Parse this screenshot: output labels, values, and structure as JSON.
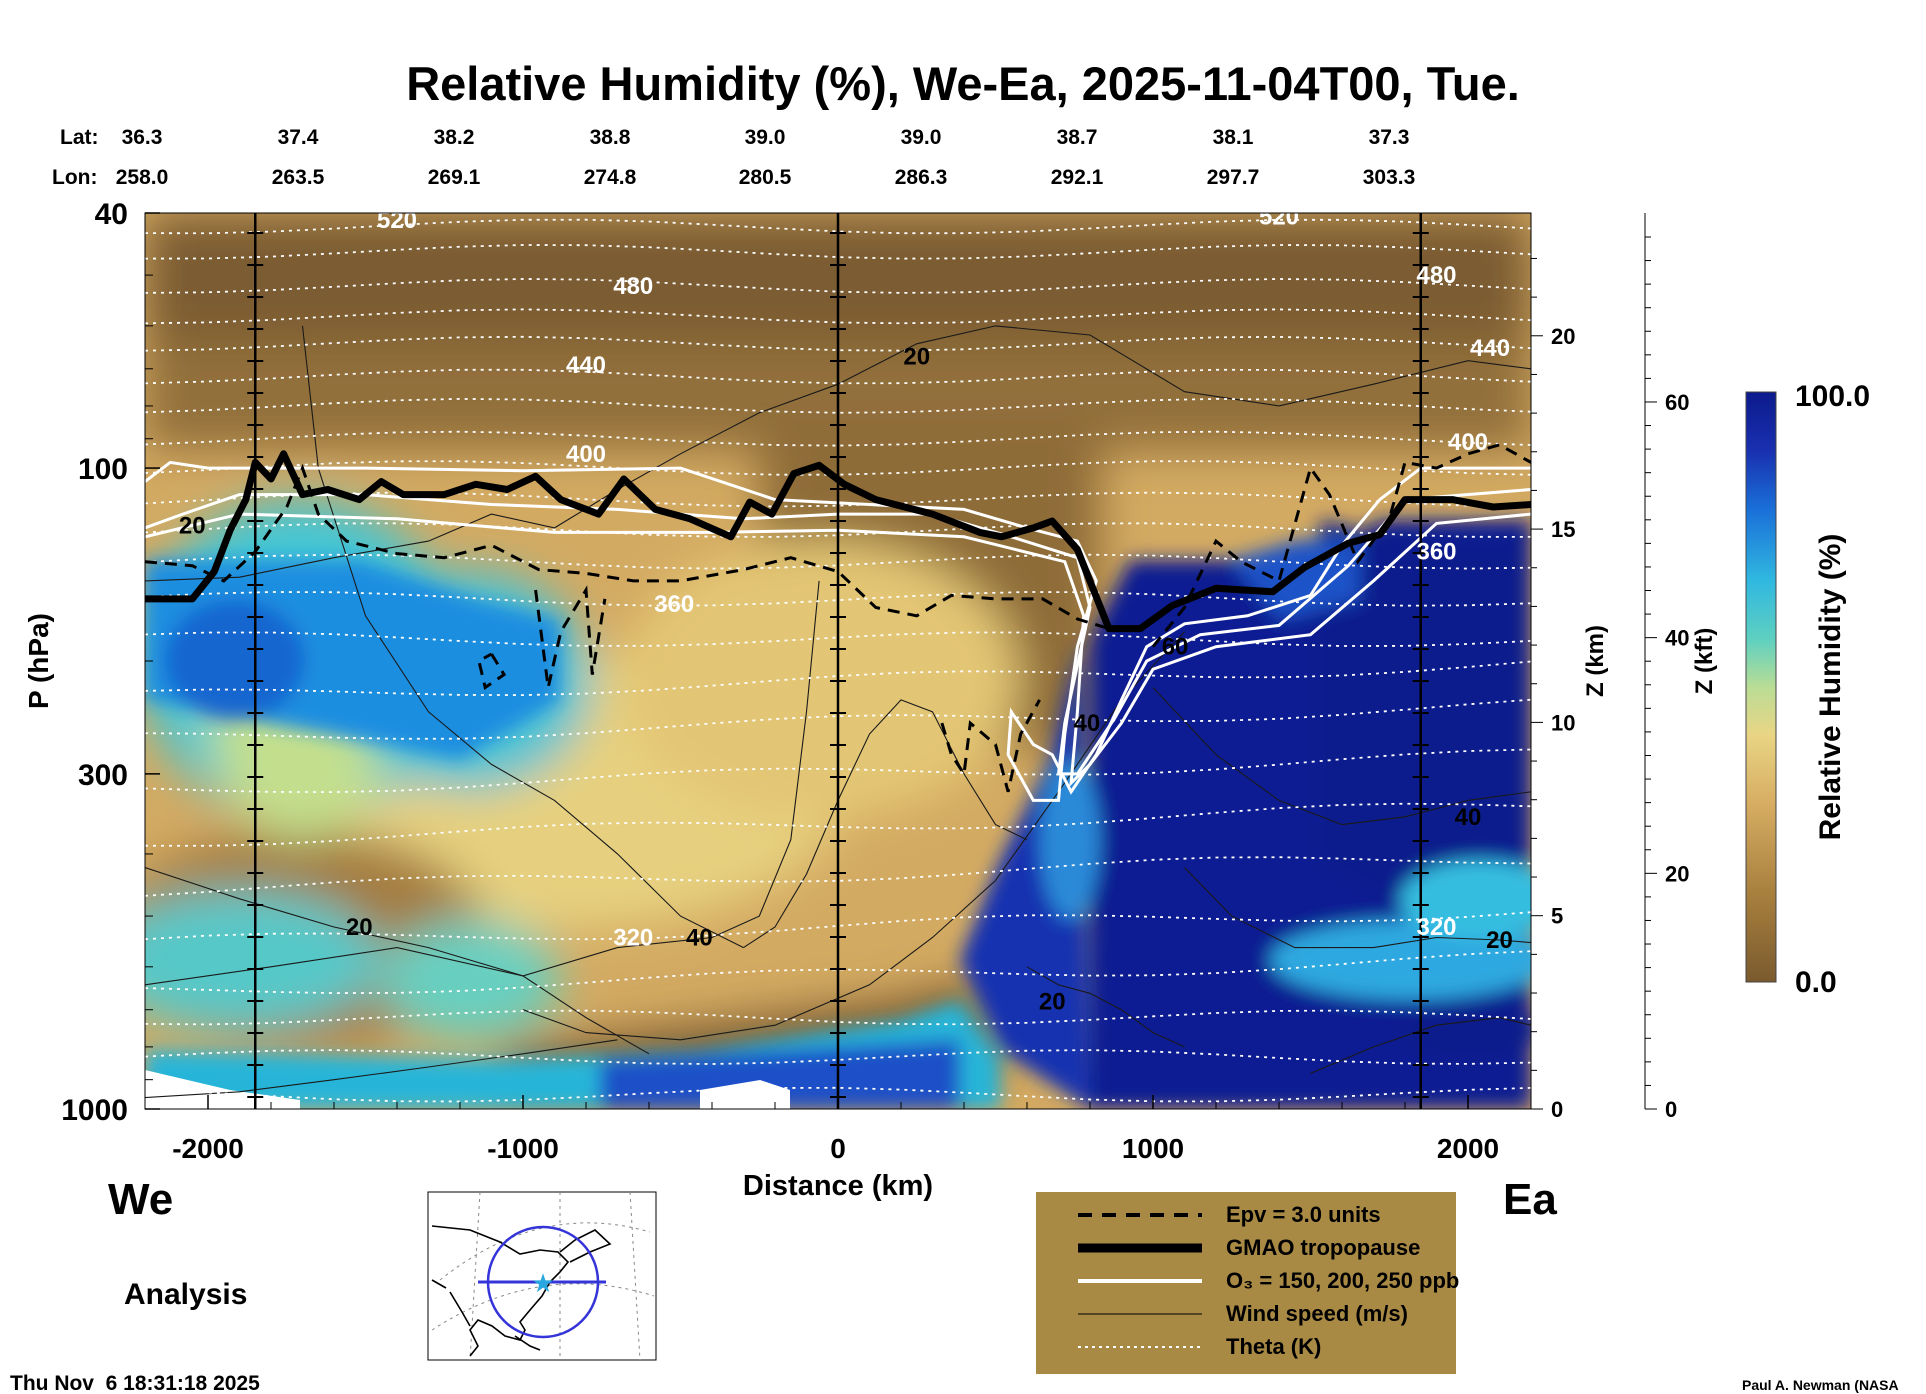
{
  "title": "Relative Humidity (%), We-Ea, 2025-11-04T00, Tue.",
  "lat_label": "Lat:",
  "lon_label": "Lon:",
  "lats": [
    "36.3",
    "37.4",
    "38.2",
    "38.8",
    "39.0",
    "39.0",
    "38.7",
    "38.1",
    "37.3"
  ],
  "lons": [
    "258.0",
    "263.5",
    "269.1",
    "274.8",
    "280.5",
    "286.3",
    "292.1",
    "297.7",
    "303.3"
  ],
  "west_label": "We",
  "east_label": "Ea",
  "analysis_label": "Analysis",
  "timestamp": "Thu Nov  6 18:31:18 2025",
  "credit": "Paul A. Newman (NASA",
  "colors": {
    "dry": "#7a5a2e",
    "tan": "#d6ac62",
    "yellow": "#e9d585",
    "cyan": "#34c3d8",
    "blue": "#1a56c8",
    "navy": "#0c1a8c",
    "legend_bg": "#a98a45",
    "contour": "#1a1a1a",
    "theta": "#ffffff"
  },
  "legend": {
    "items": [
      {
        "label": "Epv = 3.0 units",
        "style": "dashed"
      },
      {
        "label": "GMAO tropopause",
        "style": "thick"
      },
      {
        "label": "O₃ = 150, 200, 250 ppb",
        "style": "white"
      },
      {
        "label": "Wind speed (m/s)",
        "style": "thin"
      },
      {
        "label": "Theta (K)",
        "style": "dotted"
      }
    ]
  },
  "chart_data": {
    "type": "heatmap",
    "xlabel": "Distance (km)",
    "ylabel": "P (hPa)",
    "xlim": [
      -2200,
      2200
    ],
    "ylim": [
      1000,
      40
    ],
    "y_scale": "log",
    "x_ticks": [
      -2000,
      -1000,
      0,
      1000,
      2000
    ],
    "y_ticks": [
      40,
      100,
      300,
      1000
    ],
    "z_km_label": "Z (km)",
    "z_km_ticks": [
      0,
      5,
      10,
      15,
      20
    ],
    "z_kft_label": "Z (kft)",
    "z_kft_ticks": [
      0,
      20,
      40,
      60
    ],
    "colorbar": {
      "label": "Relative Humidity (%)",
      "min_label": "0.0",
      "max_label": "100.0",
      "min": 0,
      "max": 100
    },
    "vertical_markers_km": [
      -1850,
      0,
      1850
    ],
    "theta_labels": [
      {
        "text": "520",
        "x": -1400,
        "p": 41
      },
      {
        "text": "520",
        "x": 1400,
        "p": 40.5
      },
      {
        "text": "480",
        "x": -650,
        "p": 52
      },
      {
        "text": "480",
        "x": 1900,
        "p": 50
      },
      {
        "text": "440",
        "x": -800,
        "p": 69
      },
      {
        "text": "440",
        "x": 2070,
        "p": 65
      },
      {
        "text": "400",
        "x": -800,
        "p": 95
      },
      {
        "text": "400",
        "x": 2000,
        "p": 91
      },
      {
        "text": "360",
        "x": -520,
        "p": 163
      },
      {
        "text": "360",
        "x": 1900,
        "p": 135
      },
      {
        "text": "320",
        "x": -650,
        "p": 540
      },
      {
        "text": "320",
        "x": 1900,
        "p": 520
      }
    ],
    "wind_labels": [
      {
        "text": "20",
        "x": -2050,
        "p": 123
      },
      {
        "text": "20",
        "x": 250,
        "p": 67
      },
      {
        "text": "60",
        "x": 1070,
        "p": 190
      },
      {
        "text": "40",
        "x": 790,
        "p": 250
      },
      {
        "text": "40",
        "x": 2000,
        "p": 350
      },
      {
        "text": "40",
        "x": -440,
        "p": 540
      },
      {
        "text": "20",
        "x": -1520,
        "p": 520
      },
      {
        "text": "20",
        "x": 680,
        "p": 680
      },
      {
        "text": "20",
        "x": 2100,
        "p": 545
      }
    ],
    "tropopause": [
      {
        "x": -2200,
        "p": 160
      },
      {
        "x": -2050,
        "p": 160
      },
      {
        "x": -1980,
        "p": 145
      },
      {
        "x": -1930,
        "p": 125
      },
      {
        "x": -1880,
        "p": 112
      },
      {
        "x": -1850,
        "p": 98
      },
      {
        "x": -1800,
        "p": 104
      },
      {
        "x": -1760,
        "p": 95
      },
      {
        "x": -1700,
        "p": 110
      },
      {
        "x": -1620,
        "p": 108
      },
      {
        "x": -1520,
        "p": 112
      },
      {
        "x": -1450,
        "p": 105
      },
      {
        "x": -1380,
        "p": 110
      },
      {
        "x": -1250,
        "p": 110
      },
      {
        "x": -1150,
        "p": 106
      },
      {
        "x": -1050,
        "p": 108
      },
      {
        "x": -960,
        "p": 103
      },
      {
        "x": -880,
        "p": 112
      },
      {
        "x": -760,
        "p": 118
      },
      {
        "x": -680,
        "p": 104
      },
      {
        "x": -580,
        "p": 116
      },
      {
        "x": -470,
        "p": 120
      },
      {
        "x": -340,
        "p": 128
      },
      {
        "x": -280,
        "p": 113
      },
      {
        "x": -210,
        "p": 118
      },
      {
        "x": -140,
        "p": 102
      },
      {
        "x": -60,
        "p": 99
      },
      {
        "x": 20,
        "p": 106
      },
      {
        "x": 120,
        "p": 112
      },
      {
        "x": 300,
        "p": 118
      },
      {
        "x": 450,
        "p": 126
      },
      {
        "x": 520,
        "p": 128
      },
      {
        "x": 620,
        "p": 124
      },
      {
        "x": 680,
        "p": 121
      },
      {
        "x": 760,
        "p": 134
      },
      {
        "x": 860,
        "p": 178
      },
      {
        "x": 960,
        "p": 178
      },
      {
        "x": 1060,
        "p": 164
      },
      {
        "x": 1200,
        "p": 154
      },
      {
        "x": 1380,
        "p": 156
      },
      {
        "x": 1480,
        "p": 143
      },
      {
        "x": 1620,
        "p": 131
      },
      {
        "x": 1720,
        "p": 127
      },
      {
        "x": 1800,
        "p": 112
      },
      {
        "x": 1950,
        "p": 112
      },
      {
        "x": 2080,
        "p": 115
      },
      {
        "x": 2200,
        "p": 114
      }
    ],
    "ozone_contours": [
      [
        {
          "x": -2200,
          "p": 105
        },
        {
          "x": -2120,
          "p": 98
        },
        {
          "x": -2000,
          "p": 100
        },
        {
          "x": -1500,
          "p": 100
        },
        {
          "x": -1000,
          "p": 101
        },
        {
          "x": -500,
          "p": 100
        },
        {
          "x": -200,
          "p": 112
        },
        {
          "x": 100,
          "p": 114
        },
        {
          "x": 400,
          "p": 116
        },
        {
          "x": 600,
          "p": 124
        },
        {
          "x": 760,
          "p": 130
        },
        {
          "x": 820,
          "p": 150
        },
        {
          "x": 760,
          "p": 190
        },
        {
          "x": 720,
          "p": 260
        },
        {
          "x": 700,
          "p": 330
        },
        {
          "x": 620,
          "p": 330
        },
        {
          "x": 540,
          "p": 280
        },
        {
          "x": 550,
          "p": 240
        },
        {
          "x": 620,
          "p": 270
        },
        {
          "x": 680,
          "p": 280
        },
        {
          "x": 740,
          "p": 320
        },
        {
          "x": 820,
          "p": 280
        },
        {
          "x": 900,
          "p": 230
        },
        {
          "x": 980,
          "p": 190
        },
        {
          "x": 1100,
          "p": 175
        },
        {
          "x": 1300,
          "p": 170
        },
        {
          "x": 1500,
          "p": 158
        },
        {
          "x": 1600,
          "p": 132
        },
        {
          "x": 1720,
          "p": 112
        },
        {
          "x": 1850,
          "p": 100
        },
        {
          "x": 2200,
          "p": 100
        }
      ],
      [
        {
          "x": -2200,
          "p": 124
        },
        {
          "x": -2080,
          "p": 118
        },
        {
          "x": -1900,
          "p": 110
        },
        {
          "x": -1500,
          "p": 110
        },
        {
          "x": -1100,
          "p": 114
        },
        {
          "x": -700,
          "p": 116
        },
        {
          "x": -300,
          "p": 120
        },
        {
          "x": 0,
          "p": 118
        },
        {
          "x": 300,
          "p": 118
        },
        {
          "x": 550,
          "p": 128
        },
        {
          "x": 760,
          "p": 138
        },
        {
          "x": 800,
          "p": 165
        },
        {
          "x": 720,
          "p": 250
        },
        {
          "x": 700,
          "p": 300
        },
        {
          "x": 760,
          "p": 300
        },
        {
          "x": 880,
          "p": 245
        },
        {
          "x": 980,
          "p": 200
        },
        {
          "x": 1150,
          "p": 182
        },
        {
          "x": 1400,
          "p": 176
        },
        {
          "x": 1620,
          "p": 142
        },
        {
          "x": 1800,
          "p": 112
        },
        {
          "x": 2200,
          "p": 108
        }
      ],
      [
        {
          "x": -2200,
          "p": 128
        },
        {
          "x": -1900,
          "p": 118
        },
        {
          "x": -1400,
          "p": 120
        },
        {
          "x": -900,
          "p": 126
        },
        {
          "x": -400,
          "p": 126
        },
        {
          "x": 0,
          "p": 125
        },
        {
          "x": 400,
          "p": 128
        },
        {
          "x": 720,
          "p": 140
        },
        {
          "x": 780,
          "p": 170
        },
        {
          "x": 760,
          "p": 240
        },
        {
          "x": 740,
          "p": 310
        },
        {
          "x": 800,
          "p": 290
        },
        {
          "x": 900,
          "p": 250
        },
        {
          "x": 1000,
          "p": 206
        },
        {
          "x": 1200,
          "p": 190
        },
        {
          "x": 1500,
          "p": 182
        },
        {
          "x": 1700,
          "p": 150
        },
        {
          "x": 1900,
          "p": 122
        },
        {
          "x": 2200,
          "p": 118
        }
      ]
    ],
    "epv_contours": [
      [
        {
          "x": -2200,
          "p": 140
        },
        {
          "x": -2050,
          "p": 142
        },
        {
          "x": -1950,
          "p": 150
        },
        {
          "x": -1850,
          "p": 135
        },
        {
          "x": -1750,
          "p": 115
        },
        {
          "x": -1700,
          "p": 100
        },
        {
          "x": -1650,
          "p": 118
        },
        {
          "x": -1560,
          "p": 130
        },
        {
          "x": -1400,
          "p": 136
        },
        {
          "x": -1250,
          "p": 138
        },
        {
          "x": -1100,
          "p": 132
        },
        {
          "x": -950,
          "p": 144
        },
        {
          "x": -800,
          "p": 146
        },
        {
          "x": -650,
          "p": 150
        },
        {
          "x": -500,
          "p": 150
        },
        {
          "x": -300,
          "p": 144
        },
        {
          "x": -150,
          "p": 138
        },
        {
          "x": 0,
          "p": 145
        },
        {
          "x": 120,
          "p": 165
        },
        {
          "x": 250,
          "p": 170
        },
        {
          "x": 360,
          "p": 158
        },
        {
          "x": 500,
          "p": 160
        },
        {
          "x": 650,
          "p": 160
        },
        {
          "x": 760,
          "p": 172
        },
        {
          "x": 860,
          "p": 178
        }
      ],
      [
        {
          "x": -1100,
          "p": 195
        },
        {
          "x": -1060,
          "p": 210
        },
        {
          "x": -1120,
          "p": 220
        },
        {
          "x": -1140,
          "p": 200
        },
        {
          "x": -1100,
          "p": 195
        }
      ],
      [
        {
          "x": -960,
          "p": 155
        },
        {
          "x": -920,
          "p": 220
        },
        {
          "x": -880,
          "p": 180
        },
        {
          "x": -800,
          "p": 155
        },
        {
          "x": -780,
          "p": 210
        },
        {
          "x": -740,
          "p": 160
        }
      ],
      [
        {
          "x": 330,
          "p": 250
        },
        {
          "x": 360,
          "p": 280
        },
        {
          "x": 400,
          "p": 300
        },
        {
          "x": 420,
          "p": 250
        },
        {
          "x": 500,
          "p": 270
        },
        {
          "x": 540,
          "p": 320
        },
        {
          "x": 580,
          "p": 260
        },
        {
          "x": 640,
          "p": 230
        }
      ],
      [
        {
          "x": 1000,
          "p": 190
        },
        {
          "x": 1100,
          "p": 165
        },
        {
          "x": 1200,
          "p": 130
        },
        {
          "x": 1280,
          "p": 140
        },
        {
          "x": 1400,
          "p": 150
        },
        {
          "x": 1500,
          "p": 100
        },
        {
          "x": 1560,
          "p": 110
        },
        {
          "x": 1650,
          "p": 140
        },
        {
          "x": 1750,
          "p": 120
        },
        {
          "x": 1800,
          "p": 98
        },
        {
          "x": 1900,
          "p": 100
        },
        {
          "x": 2000,
          "p": 95
        },
        {
          "x": 2100,
          "p": 92
        },
        {
          "x": 2200,
          "p": 98
        }
      ]
    ]
  }
}
